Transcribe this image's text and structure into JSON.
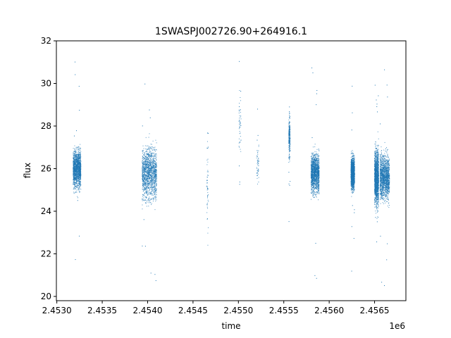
{
  "chart_data": {
    "type": "scatter",
    "title": "1SWASPJ002726.90+264916.1",
    "xlabel": "time",
    "ylabel": "flux",
    "x_offset_label": "1e6",
    "xlim": [
      2452995,
      2456845
    ],
    "ylim": [
      19.8,
      32.0
    ],
    "x_ticks": [
      2453000,
      2453500,
      2454000,
      2454500,
      2455000,
      2455500,
      2456000,
      2456500
    ],
    "x_tick_labels": [
      "2.4530",
      "2.4535",
      "2.4540",
      "2.4545",
      "2.4550",
      "2.4555",
      "2.4560",
      "2.4565"
    ],
    "y_ticks": [
      20,
      22,
      24,
      26,
      28,
      30,
      32
    ],
    "y_tick_labels": [
      "20",
      "22",
      "24",
      "26",
      "28",
      "30",
      "32"
    ],
    "grid": false,
    "marker_color": "#1f77b4",
    "clusters": [
      {
        "x_start": 2453180,
        "x_end": 2453265,
        "y_center": 26.0,
        "y_spread": 1.1,
        "y_min": 20.3,
        "y_max": 31.3,
        "density": "high"
      },
      {
        "x_start": 2453940,
        "x_end": 2454100,
        "y_center": 25.8,
        "y_spread": 1.5,
        "y_min": 20.5,
        "y_max": 31.3,
        "density": "high"
      },
      {
        "x_start": 2454650,
        "x_end": 2454670,
        "y_center": 25.0,
        "y_spread": 2.5,
        "y_min": 21.7,
        "y_max": 27.8,
        "density": "low"
      },
      {
        "x_start": 2455005,
        "x_end": 2455030,
        "y_center": 28.0,
        "y_spread": 2.0,
        "y_min": 23.4,
        "y_max": 31.4,
        "density": "low"
      },
      {
        "x_start": 2455200,
        "x_end": 2455225,
        "y_center": 26.3,
        "y_spread": 1.2,
        "y_min": 24.6,
        "y_max": 29.0,
        "density": "low"
      },
      {
        "x_start": 2455555,
        "x_end": 2455570,
        "y_center": 27.5,
        "y_spread": 1.2,
        "y_min": 23.3,
        "y_max": 30.0,
        "density": "medium"
      },
      {
        "x_start": 2455800,
        "x_end": 2455890,
        "y_center": 25.8,
        "y_spread": 1.1,
        "y_min": 20.4,
        "y_max": 31.0,
        "density": "high"
      },
      {
        "x_start": 2456240,
        "x_end": 2456280,
        "y_center": 25.8,
        "y_spread": 0.9,
        "y_min": 20.8,
        "y_max": 31.2,
        "density": "high"
      },
      {
        "x_start": 2456500,
        "x_end": 2456545,
        "y_center": 25.6,
        "y_spread": 1.6,
        "y_min": 21.0,
        "y_max": 31.4,
        "density": "high"
      },
      {
        "x_start": 2456560,
        "x_end": 2456665,
        "y_center": 25.6,
        "y_spread": 1.3,
        "y_min": 20.4,
        "y_max": 31.2,
        "density": "high"
      }
    ]
  }
}
